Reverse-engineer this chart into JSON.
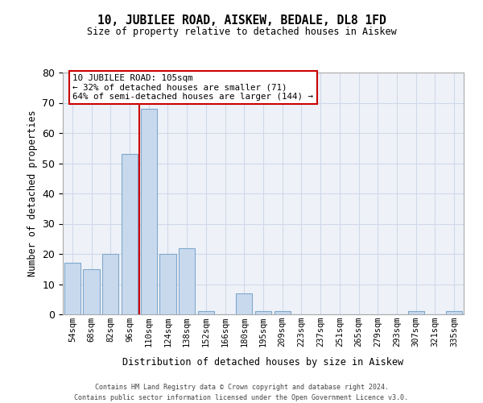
{
  "title_line1": "10, JUBILEE ROAD, AISKEW, BEDALE, DL8 1FD",
  "title_line2": "Size of property relative to detached houses in Aiskew",
  "xlabel": "Distribution of detached houses by size in Aiskew",
  "ylabel": "Number of detached properties",
  "bar_color": "#c9d9ed",
  "bar_edge_color": "#7fa8cc",
  "categories": [
    "54sqm",
    "68sqm",
    "82sqm",
    "96sqm",
    "110sqm",
    "124sqm",
    "138sqm",
    "152sqm",
    "166sqm",
    "180sqm",
    "195sqm",
    "209sqm",
    "223sqm",
    "237sqm",
    "251sqm",
    "265sqm",
    "279sqm",
    "293sqm",
    "307sqm",
    "321sqm",
    "335sqm"
  ],
  "values": [
    17,
    15,
    20,
    53,
    68,
    20,
    22,
    1,
    0,
    7,
    1,
    1,
    0,
    0,
    0,
    0,
    0,
    0,
    1,
    0,
    1
  ],
  "ylim": [
    0,
    80
  ],
  "yticks": [
    0,
    10,
    20,
    30,
    40,
    50,
    60,
    70,
    80
  ],
  "property_label": "10 JUBILEE ROAD: 105sqm",
  "annotation_line1": "← 32% of detached houses are smaller (71)",
  "annotation_line2": "64% of semi-detached houses are larger (144) →",
  "vline_color": "#cc0000",
  "grid_color": "#d0d8e8",
  "background_color": "#eef2f8",
  "footer_line1": "Contains HM Land Registry data © Crown copyright and database right 2024.",
  "footer_line2": "Contains public sector information licensed under the Open Government Licence v3.0."
}
